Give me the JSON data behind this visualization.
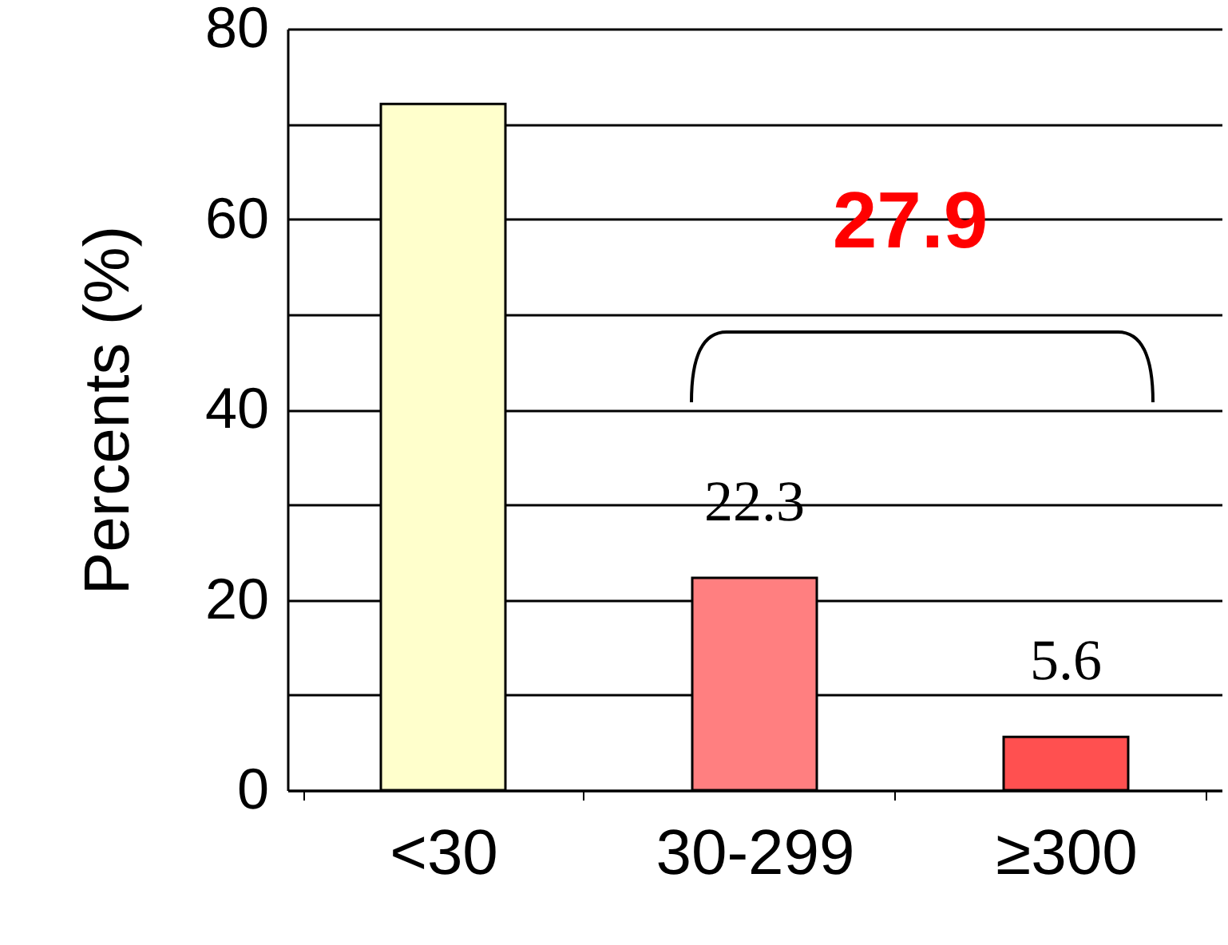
{
  "chart_data": {
    "type": "bar",
    "ylabel": "Percents (%)",
    "categories": [
      "<30",
      "30-299",
      "≥300"
    ],
    "values": [
      72.1,
      22.3,
      5.6
    ],
    "colors": [
      "#ffffcc",
      "#ff7f80",
      "#ff5050"
    ],
    "value_labels": [
      null,
      "22.3",
      "5.6"
    ],
    "annotations": [
      "27.9"
    ],
    "ylim": [
      0,
      80
    ],
    "yticks": [
      0,
      {
        "value": 10,
        "label": null
      },
      20,
      {
        "value": 30,
        "label": null
      },
      40,
      {
        "value": 50,
        "label": null
      },
      60,
      {
        "value": 70,
        "label": null
      },
      80
    ],
    "grid": "y"
  }
}
